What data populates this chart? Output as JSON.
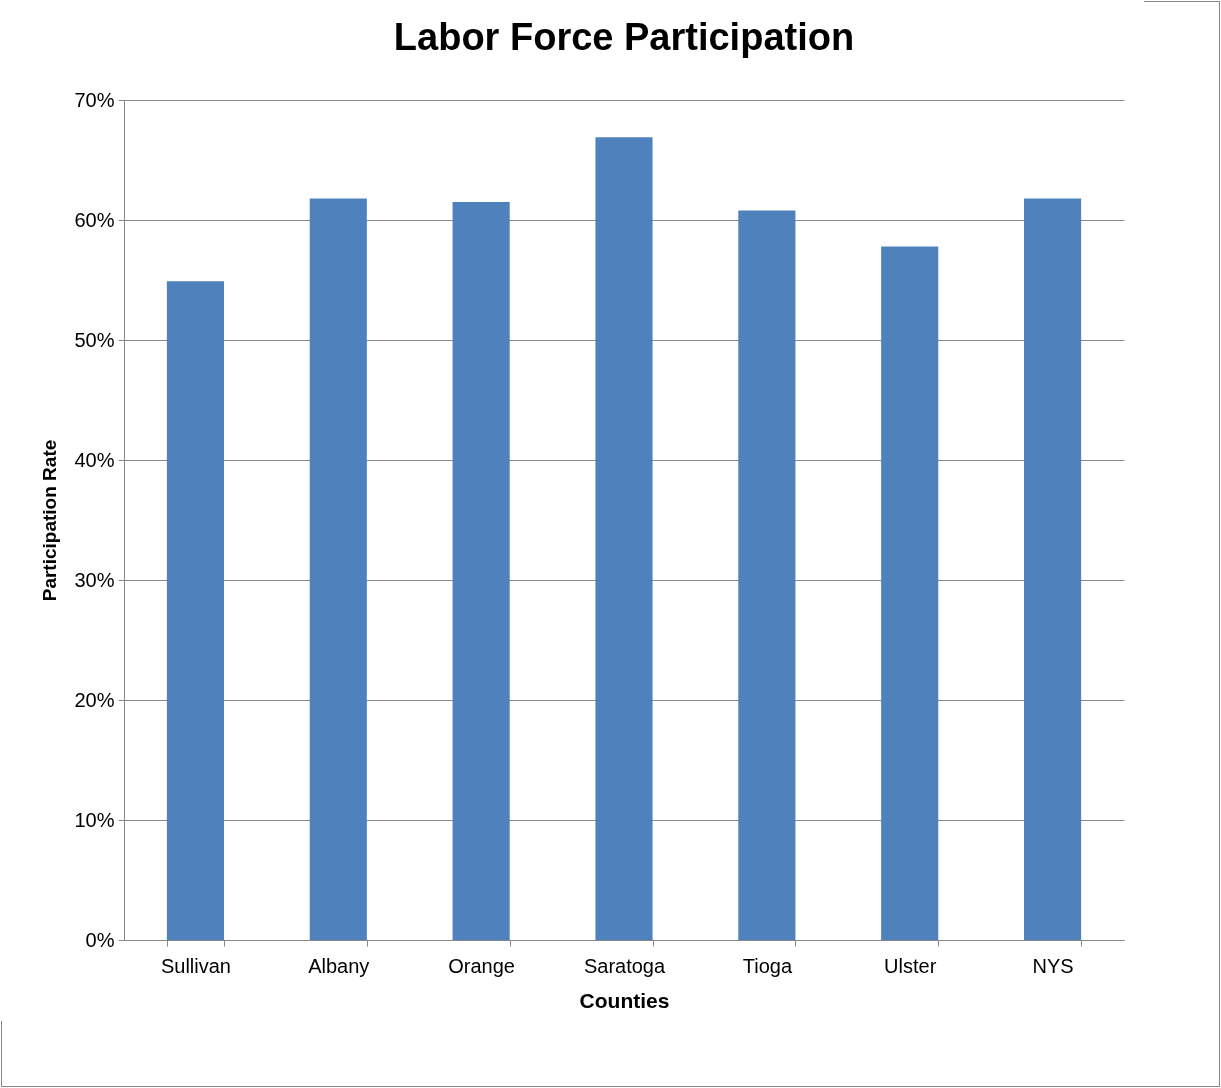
{
  "chart_data": {
    "type": "bar",
    "title": "Labor Force Participation",
    "xlabel": "Counties",
    "ylabel": "Participation Rate",
    "categories": [
      "Sullivan",
      "Albany",
      "Orange",
      "Saratoga",
      "Tioga",
      "Ulster",
      "NYS"
    ],
    "values": [
      54.9,
      61.8,
      61.5,
      66.9,
      60.8,
      57.8,
      61.8
    ],
    "color": "#4f81bd",
    "ylim": [
      0,
      70
    ],
    "yticks": [
      {
        "value": 0,
        "label": "0%"
      },
      {
        "value": 10,
        "label": "10%"
      },
      {
        "value": 20,
        "label": "20%"
      },
      {
        "value": 30,
        "label": "30%"
      },
      {
        "value": 40,
        "label": "40%"
      },
      {
        "value": 50,
        "label": "50%"
      },
      {
        "value": 60,
        "label": "60%"
      },
      {
        "value": 70,
        "label": "70%"
      }
    ],
    "grid": "y"
  }
}
